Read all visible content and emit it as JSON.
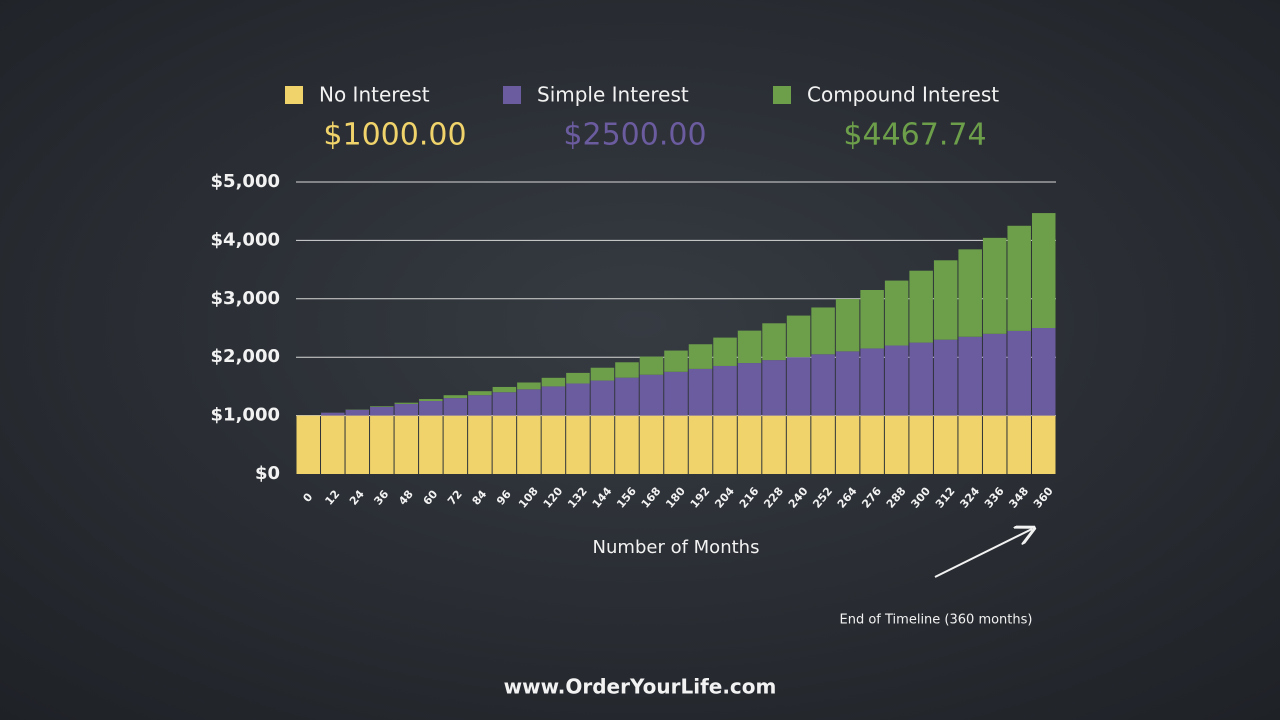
{
  "chart_data": {
    "type": "stacked_bar",
    "x_label": "Number of Months",
    "categories": [
      "0",
      "12",
      "24",
      "36",
      "48",
      "60",
      "72",
      "84",
      "96",
      "108",
      "120",
      "132",
      "144",
      "156",
      "168",
      "180",
      "192",
      "204",
      "216",
      "228",
      "240",
      "252",
      "264",
      "276",
      "288",
      "300",
      "312",
      "324",
      "336",
      "348",
      "360"
    ],
    "series": [
      {
        "name": "No Interest",
        "color": "#f0d36a",
        "total": "$1000.00",
        "values": [
          1000,
          1000,
          1000,
          1000,
          1000,
          1000,
          1000,
          1000,
          1000,
          1000,
          1000,
          1000,
          1000,
          1000,
          1000,
          1000,
          1000,
          1000,
          1000,
          1000,
          1000,
          1000,
          1000,
          1000,
          1000,
          1000,
          1000,
          1000,
          1000,
          1000,
          1000
        ]
      },
      {
        "name": "Simple Interest",
        "color": "#6b5b9f",
        "total": "$2500.00",
        "values": [
          0,
          50,
          100,
          150,
          200,
          250,
          300,
          350,
          400,
          450,
          500,
          550,
          600,
          650,
          700,
          750,
          800,
          850,
          900,
          950,
          1000,
          1050,
          1100,
          1150,
          1200,
          1250,
          1300,
          1350,
          1400,
          1450,
          1500
        ]
      },
      {
        "name": "Compound Interest",
        "color": "#6d9f4b",
        "total": "$4467.74",
        "values": [
          0,
          1.16,
          4.94,
          11.47,
          20.9,
          33.36,
          49.02,
          68.04,
          90.59,
          116.85,
          147.01,
          181.28,
          219.85,
          262.96,
          310.83,
          363.7,
          421.85,
          485.52,
          555.01,
          630.61,
          712.64,
          801.43,
          897.31,
          1000.66,
          1111.86,
          1231.3,
          1359.41,
          1496.64,
          1643.44,
          1800.31,
          1967.74
        ]
      }
    ],
    "ylim": [
      0,
      5000
    ],
    "yticks": [
      {
        "value": 0,
        "label": "$0"
      },
      {
        "value": 1000,
        "label": "$1,000"
      },
      {
        "value": 2000,
        "label": "$2,000"
      },
      {
        "value": 3000,
        "label": "$3,000"
      },
      {
        "value": 4000,
        "label": "$4,000"
      },
      {
        "value": 5000,
        "label": "$5,000"
      }
    ],
    "grid": true,
    "annotation": "End of Timeline (360 months)",
    "footer": "www.OrderYourLife.com"
  }
}
